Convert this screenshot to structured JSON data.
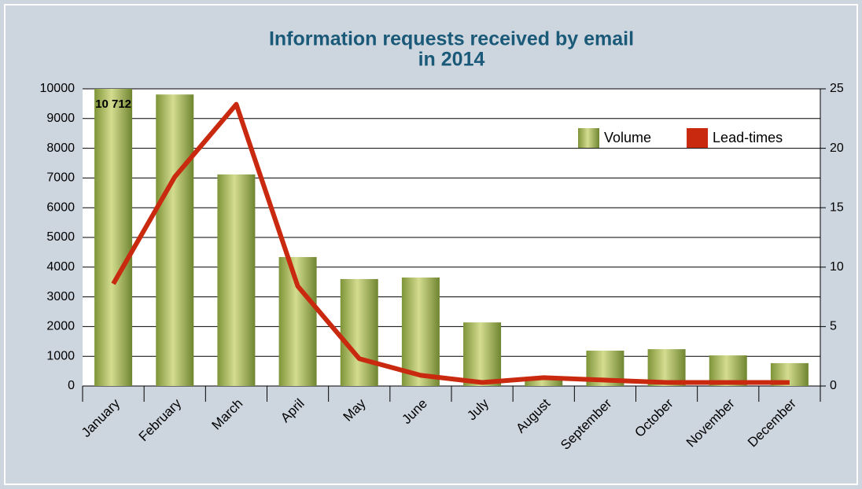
{
  "chart_data": {
    "type": "bar+line",
    "title": [
      "Information requests received by email",
      "in 2014"
    ],
    "categories": [
      "January",
      "February",
      "March",
      "April",
      "May",
      "June",
      "July",
      "August",
      "September",
      "October",
      "November",
      "December"
    ],
    "series": [
      {
        "name": "Volume",
        "type": "bar",
        "color": "#9aab4e",
        "values": [
          10712,
          9810,
          7120,
          4340,
          3600,
          3650,
          2140,
          300,
          1190,
          1240,
          1030,
          770
        ],
        "value_labels": [
          "10 712",
          null,
          null,
          null,
          null,
          null,
          null,
          null,
          null,
          null,
          null,
          null
        ]
      },
      {
        "name": "Lead-times",
        "type": "line",
        "axis": "y2",
        "color": "#c8290f",
        "values": [
          8.6,
          17.6,
          23.7,
          8.4,
          2.3,
          0.9,
          0.3,
          0.7,
          0.5,
          0.3,
          0.3,
          0.3
        ]
      }
    ],
    "ylim": [
      0,
      10000
    ],
    "yticks": [
      0,
      1000,
      2000,
      3000,
      4000,
      5000,
      6000,
      7000,
      8000,
      9000,
      10000
    ],
    "y2lim": [
      0,
      25
    ],
    "y2ticks": [
      0,
      5,
      10,
      15,
      20,
      25
    ],
    "grid": true,
    "legend": "upper right"
  }
}
